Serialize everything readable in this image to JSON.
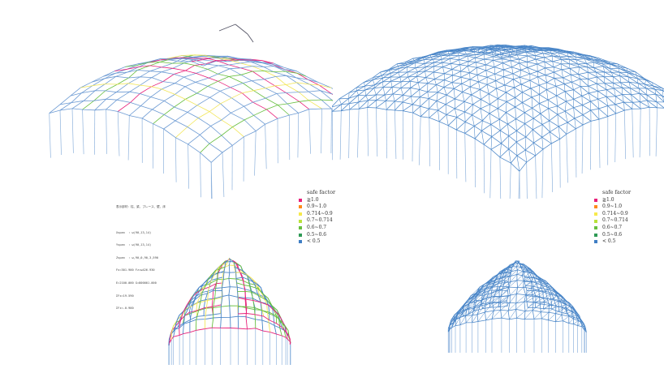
{
  "legend": {
    "title": "safe factor",
    "items": [
      {
        "label": "≧1.0",
        "color": "#e8207a"
      },
      {
        "label": "0.9~1.0",
        "color": "#ff8a1a"
      },
      {
        "label": "0.714~0.9",
        "color": "#f6e94b"
      },
      {
        "label": "0.7~0.714",
        "color": "#b9e23a"
      },
      {
        "label": "0.6~0.7",
        "color": "#67bf3f"
      },
      {
        "label": "0.5~0.6",
        "color": "#2e9a55"
      },
      {
        "label": "< 0.5",
        "color": "#3f7ec4"
      }
    ]
  },
  "legend_right": {
    "title": "safe factor",
    "items": [
      {
        "label": "≧1.0",
        "color": "#e8207a"
      },
      {
        "label": "0.9~1.0",
        "color": "#ff8a1a"
      },
      {
        "label": "0.714~0.9",
        "color": "#f6e94b"
      },
      {
        "label": "0.7~0.714",
        "color": "#b9e23a"
      },
      {
        "label": "0.6~0.7",
        "color": "#67bf3f"
      },
      {
        "label": "0.5~0.6",
        "color": "#2e9a55"
      },
      {
        "label": "< 0.5",
        "color": "#3f7ec4"
      }
    ]
  },
  "info": {
    "lines": [
      "表示部材：柱、梁、ブレース、壁、床",
      "",
      "Xspan  : ω(90,13,14)",
      "Yspan  : ω(90,13,14)",
      "Zspan  : ω,90,0,90,3,590",
      "Fx=301.900 Fz=ω426.930",
      "E=2100.000 G=800001.000",
      "ΣFx=19.590",
      "ΣFz=-0.900"
    ]
  },
  "colors": {
    "frame": "#4a86c8",
    "pink": "#e8207a",
    "yellow": "#f2e65a",
    "green": "#67bf3f",
    "light": "#9bb8e0"
  }
}
